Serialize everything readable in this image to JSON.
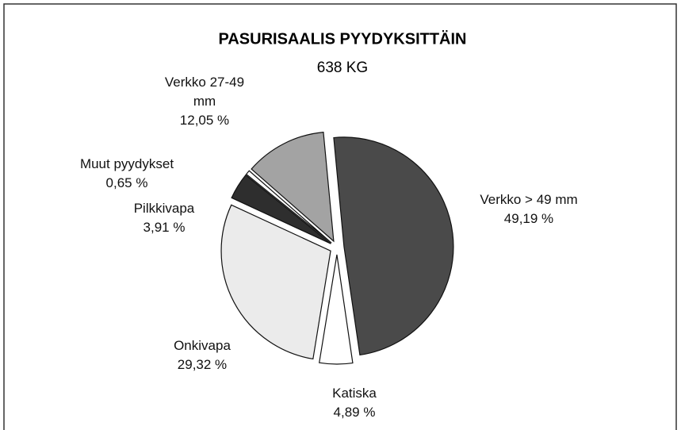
{
  "chart_data": {
    "type": "pie",
    "title": "PASURISAALIS PYYDYKSITTÄIN",
    "subtitle": "638 KG",
    "categories": [
      "Verkko > 49 mm",
      "Katiska",
      "Onkivapa",
      "Pilkkivapa",
      "Muut pyydykset",
      "Verkko 27-49 mm"
    ],
    "values": [
      49.19,
      4.89,
      29.32,
      3.91,
      0.65,
      12.05
    ],
    "value_labels": [
      "49,19 %",
      "4,89 %",
      "29,32 %",
      "3,91 %",
      "0,65 %",
      "12,05 %"
    ],
    "colors": [
      "#4a4a4a",
      "#ffffff",
      "#ebebeb",
      "#2e2e2e",
      "#ffffff",
      "#a3a3a3"
    ]
  }
}
